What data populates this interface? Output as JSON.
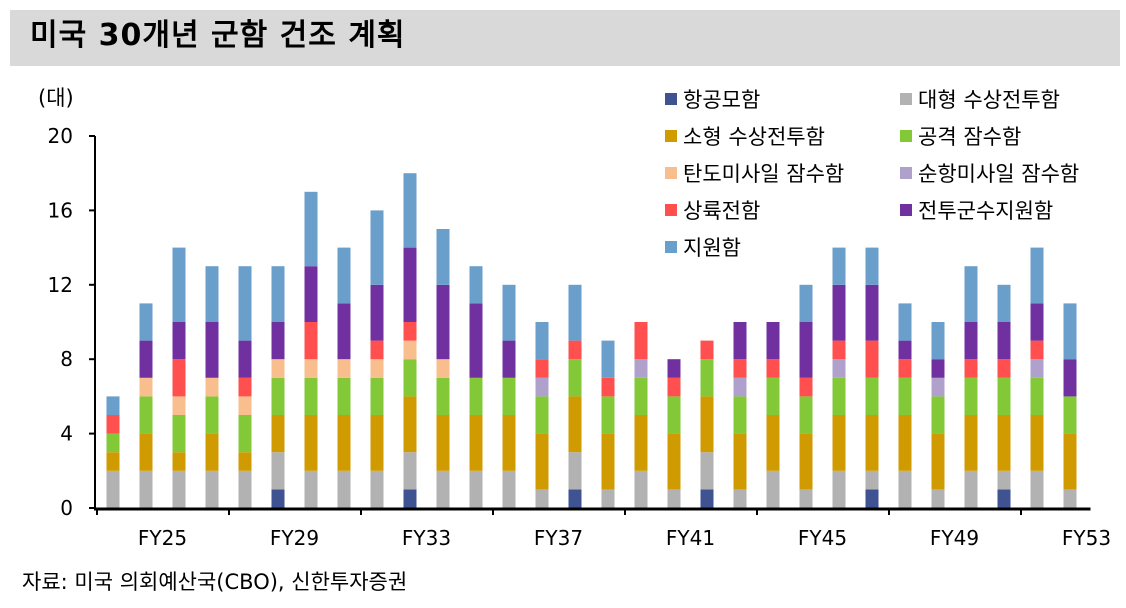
{
  "title": "미국 30개년 군함 건조 계획",
  "source": "자료: 미국 의회예산국(CBO), 신한투자증권",
  "chart_data": {
    "type": "bar",
    "stacked": true,
    "title": "미국 30개년 군함 건조 계획",
    "ylabel": "(대)",
    "xlabel": "",
    "ylim": [
      0,
      20
    ],
    "yticks": [
      "0",
      "4",
      "8",
      "12",
      "16",
      "20"
    ],
    "ytick_values": [
      0,
      4,
      8,
      12,
      16,
      20
    ],
    "categories": [
      "FY25",
      "FY26",
      "FY27",
      "FY28",
      "FY29",
      "FY30",
      "FY31",
      "FY32",
      "FY33",
      "FY34",
      "FY35",
      "FY36",
      "FY37",
      "FY38",
      "FY39",
      "FY40",
      "FY41",
      "FY42",
      "FY43",
      "FY44",
      "FY45",
      "FY46",
      "FY47",
      "FY48",
      "FY49",
      "FY50",
      "FY51",
      "FY52",
      "FY53",
      "FY54"
    ],
    "xtick_labels": [
      "FY25",
      "FY29",
      "FY33",
      "FY37",
      "FY41",
      "FY45",
      "FY49",
      "FY53"
    ],
    "legend_position": "top-right",
    "series": [
      {
        "name": "항공모함",
        "color": "#3F5291",
        "values": [
          0,
          0,
          0,
          0,
          0,
          1,
          0,
          0,
          0,
          1,
          0,
          0,
          0,
          0,
          1,
          0,
          0,
          0,
          1,
          0,
          0,
          0,
          0,
          1,
          0,
          0,
          0,
          1,
          0,
          0
        ]
      },
      {
        "name": "대형 수상전투함",
        "color": "#B2B2B2",
        "values": [
          2,
          2,
          2,
          2,
          2,
          2,
          2,
          2,
          2,
          2,
          2,
          2,
          2,
          1,
          2,
          1,
          2,
          1,
          2,
          1,
          2,
          1,
          2,
          1,
          2,
          1,
          2,
          1,
          2,
          1
        ]
      },
      {
        "name": "소형 수상전투함",
        "color": "#D09B00",
        "values": [
          1,
          2,
          1,
          2,
          1,
          2,
          3,
          3,
          3,
          3,
          3,
          3,
          3,
          3,
          3,
          3,
          3,
          3,
          3,
          3,
          3,
          3,
          3,
          3,
          3,
          3,
          3,
          3,
          3,
          3
        ]
      },
      {
        "name": "공격 잠수함",
        "color": "#82C837",
        "values": [
          1,
          2,
          2,
          2,
          2,
          2,
          2,
          2,
          2,
          2,
          2,
          2,
          2,
          2,
          2,
          2,
          2,
          2,
          2,
          2,
          2,
          2,
          2,
          2,
          2,
          2,
          2,
          2,
          2,
          2
        ]
      },
      {
        "name": "탄도미사일 잠수함",
        "color": "#F9BE8D",
        "values": [
          0,
          1,
          1,
          1,
          1,
          1,
          1,
          1,
          1,
          1,
          1,
          0,
          0,
          0,
          0,
          0,
          0,
          0,
          0,
          0,
          0,
          0,
          0,
          0,
          0,
          0,
          0,
          0,
          0,
          0
        ]
      },
      {
        "name": "순항미사일 잠수함",
        "color": "#B0A0CC",
        "values": [
          0,
          0,
          0,
          0,
          0,
          0,
          0,
          0,
          0,
          0,
          0,
          0,
          0,
          1,
          0,
          0,
          1,
          0,
          0,
          1,
          0,
          0,
          1,
          0,
          0,
          1,
          0,
          0,
          1,
          0
        ]
      },
      {
        "name": "상륙전함",
        "color": "#FF4F4F",
        "values": [
          1,
          0,
          2,
          0,
          1,
          0,
          2,
          0,
          1,
          1,
          0,
          0,
          0,
          1,
          1,
          1,
          2,
          1,
          1,
          1,
          1,
          1,
          1,
          2,
          1,
          0,
          1,
          1,
          1,
          0
        ]
      },
      {
        "name": "전투군수지원함",
        "color": "#7030A0",
        "values": [
          0,
          2,
          2,
          3,
          2,
          2,
          3,
          3,
          3,
          4,
          4,
          4,
          2,
          0,
          0,
          0,
          0,
          1,
          0,
          2,
          2,
          3,
          3,
          3,
          1,
          1,
          2,
          2,
          2,
          2
        ]
      },
      {
        "name": "지원함",
        "color": "#6A9FCB",
        "values": [
          1,
          2,
          4,
          3,
          4,
          3,
          4,
          3,
          4,
          4,
          3,
          2,
          3,
          2,
          3,
          2,
          0,
          0,
          0,
          0,
          0,
          2,
          2,
          2,
          2,
          2,
          3,
          2,
          3,
          3
        ]
      }
    ]
  }
}
